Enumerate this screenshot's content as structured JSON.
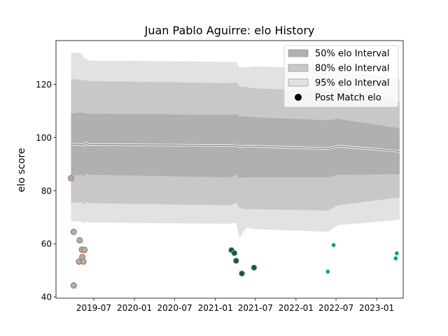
{
  "chart_data": {
    "type": "line",
    "title": "Juan Pablo Aguirre: elo History",
    "xlabel": "",
    "ylabel": "elo score",
    "xlim": [
      "2019-01-11",
      "2023-05-01"
    ],
    "ylim": [
      39.5,
      136.5
    ],
    "x_ticks": [
      "2019-07",
      "2020-01",
      "2020-07",
      "2021-01",
      "2021-07",
      "2022-01",
      "2022-07",
      "2023-01"
    ],
    "y_ticks": [
      40,
      60,
      80,
      100,
      120
    ],
    "grid": false,
    "legend_position": "top-right",
    "legend": [
      {
        "label": "50% elo Interval",
        "kind": "patch",
        "color": "#b0b0b0"
      },
      {
        "label": "80% elo Interval",
        "kind": "patch",
        "color": "#c8c8c8"
      },
      {
        "label": "95% elo Interval",
        "kind": "patch",
        "color": "#e2e2e2"
      },
      {
        "label": "Post Match elo",
        "kind": "marker",
        "color": "#000000"
      }
    ],
    "bands": {
      "dates": [
        "2019-03-20",
        "2019-05-05",
        "2019-05-20",
        "2019-05-27",
        "2019-06-05",
        "2021-03-10",
        "2021-04-05",
        "2021-04-20",
        "2021-05-20",
        "2021-07-01",
        "2022-05-25",
        "2022-07-10",
        "2023-04-15"
      ],
      "mean": [
        97.5,
        97.4,
        97.0,
        98.0,
        97.4,
        97.0,
        97.2,
        96.5,
        96.8,
        96.7,
        95.8,
        96.8,
        94.8
      ],
      "p50_lower": [
        86.0,
        85.9,
        85.5,
        86.5,
        86.0,
        85.0,
        86.0,
        84.8,
        85.0,
        85.0,
        85.0,
        86.0,
        86.2
      ],
      "p50_upper": [
        109.0,
        109.5,
        109.0,
        109.3,
        109.0,
        108.5,
        108.8,
        107.8,
        108.0,
        107.6,
        106.5,
        107.0,
        103.5
      ],
      "p80_lower": [
        75.5,
        75.6,
        74.8,
        75.8,
        75.3,
        74.5,
        75.5,
        73.5,
        73.0,
        73.0,
        72.5,
        74.5,
        77.5
      ],
      "p80_upper": [
        122.0,
        121.7,
        121.2,
        121.8,
        121.3,
        120.5,
        120.7,
        119.2,
        119.0,
        118.5,
        117.5,
        118.5,
        113.5
      ],
      "p95_lower": [
        68.5,
        68.3,
        67.5,
        68.5,
        68.0,
        67.5,
        68.0,
        62.0,
        66.0,
        65.5,
        64.5,
        67.0,
        69.0
      ],
      "p95_upper": [
        132.0,
        131.8,
        129.5,
        130.0,
        129.0,
        128.5,
        128.5,
        126.5,
        126.5,
        126.8,
        126.0,
        125.5,
        122.0
      ]
    },
    "series": [
      {
        "points": [
          {
            "x": "2019-03-20",
            "y": 84.7
          },
          {
            "x": "2019-04-01",
            "y": 64.5
          },
          {
            "x": "2019-04-01",
            "y": 44.3
          },
          {
            "x": "2019-04-25",
            "y": 53.3
          },
          {
            "x": "2019-04-28",
            "y": 61.3
          },
          {
            "x": "2019-05-08",
            "y": 57.8
          },
          {
            "x": "2019-05-10",
            "y": 55.0
          },
          {
            "x": "2019-05-15",
            "y": 53.3
          },
          {
            "x": "2019-05-20",
            "y": 57.7
          }
        ]
      },
      {
        "points": [
          {
            "x": "2021-03-15",
            "y": 57.6
          },
          {
            "x": "2021-03-28",
            "y": 56.5
          },
          {
            "x": "2021-04-05",
            "y": 53.6
          },
          {
            "x": "2021-05-01",
            "y": 48.8
          },
          {
            "x": "2021-06-25",
            "y": 51.0
          }
        ]
      },
      {
        "points": [
          {
            "x": "2022-05-25",
            "y": 49.5
          },
          {
            "x": "2022-06-20",
            "y": 59.5
          },
          {
            "x": "2023-03-28",
            "y": 54.5
          },
          {
            "x": "2023-04-02",
            "y": 56.4
          }
        ]
      }
    ],
    "colors": {
      "band50": "#b0b0b0",
      "band80": "#c8c8c8",
      "band95": "#e2e2e2",
      "mean_line": "#7f7f7f",
      "marker_edge": "#d65f2c",
      "marker_fill_2019": "#8fb8c8",
      "marker_fill_2021": "#1c4f4e",
      "marker_teal": "#13a093"
    }
  }
}
